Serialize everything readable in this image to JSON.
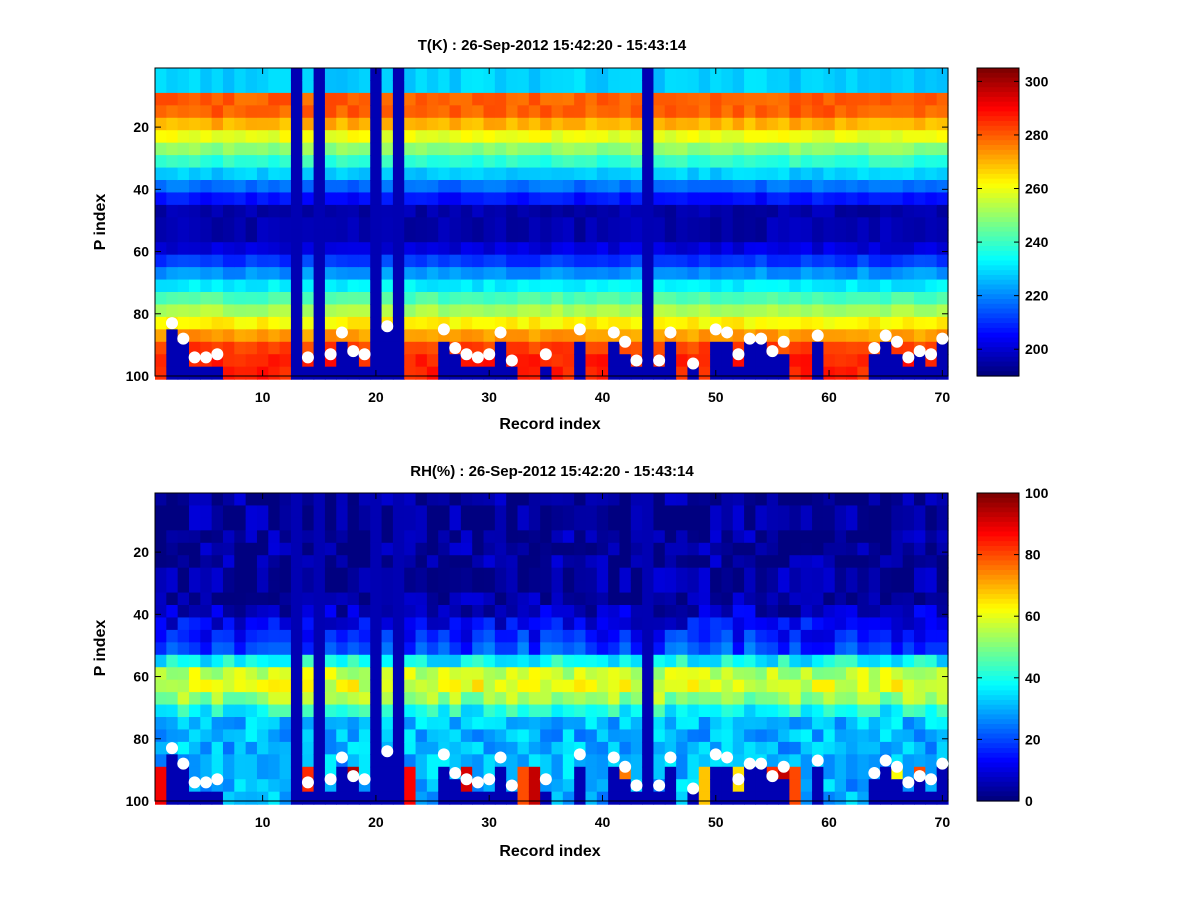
{
  "chart_data": [
    {
      "type": "heatmap",
      "title": "T(K) : 26-Sep-2012 15:42:20 - 15:43:14",
      "xlabel": "Record index",
      "ylabel": "P index",
      "xlim": [
        1,
        70
      ],
      "ylim": [
        1,
        100
      ],
      "x_ticks": [
        10,
        20,
        30,
        40,
        50,
        60,
        70
      ],
      "y_ticks": [
        20,
        40,
        60,
        80,
        100
      ],
      "y_reversed": true,
      "colorbar": {
        "min": 190,
        "max": 305,
        "ticks": [
          200,
          220,
          240,
          260,
          280,
          300
        ],
        "colormap": "jet"
      },
      "missing_records": [
        13,
        15,
        20,
        22,
        44
      ],
      "surface_markers": {
        "x": [
          2,
          3,
          4,
          5,
          6,
          14,
          16,
          17,
          18,
          19,
          21,
          26,
          27,
          28,
          29,
          30,
          31,
          32,
          35,
          38,
          41,
          42,
          43,
          45,
          46,
          48,
          50,
          51,
          52,
          53,
          54,
          55,
          56,
          59,
          64,
          65,
          66,
          67,
          68,
          69,
          70
        ],
        "y": [
          83,
          88,
          94,
          94,
          93,
          94,
          93,
          86,
          92,
          93,
          84,
          85,
          91,
          93,
          94,
          93,
          86,
          95,
          93,
          85,
          86,
          89,
          95,
          95,
          86,
          96,
          85,
          86,
          93,
          88,
          88,
          92,
          89,
          87,
          91,
          87,
          89,
          94,
          92,
          93,
          88
        ]
      }
    },
    {
      "type": "heatmap",
      "title": "RH(%) : 26-Sep-2012 15:42:20 - 15:43:14",
      "xlabel": "Record index",
      "ylabel": "P index",
      "xlim": [
        1,
        70
      ],
      "ylim": [
        1,
        100
      ],
      "x_ticks": [
        10,
        20,
        30,
        40,
        50,
        60,
        70
      ],
      "y_ticks": [
        20,
        40,
        60,
        80,
        100
      ],
      "y_reversed": true,
      "colorbar": {
        "min": 0,
        "max": 100,
        "ticks": [
          0,
          20,
          40,
          60,
          80,
          100
        ],
        "colormap": "jet"
      },
      "missing_records": [
        13,
        15,
        20,
        22,
        44
      ],
      "surface_markers": {
        "x": [
          2,
          3,
          4,
          5,
          6,
          14,
          16,
          17,
          18,
          19,
          21,
          26,
          27,
          28,
          29,
          30,
          31,
          32,
          35,
          38,
          41,
          42,
          43,
          45,
          46,
          48,
          50,
          51,
          52,
          53,
          54,
          55,
          56,
          59,
          64,
          65,
          66,
          67,
          68,
          69,
          70
        ],
        "y": [
          83,
          88,
          94,
          94,
          93,
          94,
          93,
          86,
          92,
          93,
          84,
          85,
          91,
          93,
          94,
          93,
          86,
          95,
          93,
          85,
          86,
          89,
          95,
          95,
          86,
          96,
          85,
          86,
          93,
          88,
          88,
          92,
          89,
          87,
          91,
          87,
          89,
          94,
          92,
          93,
          88
        ]
      }
    }
  ]
}
